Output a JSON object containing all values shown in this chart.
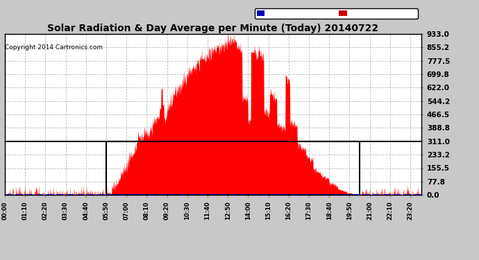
{
  "title": "Solar Radiation & Day Average per Minute (Today) 20140722",
  "copyright": "Copyright 2014 Cartronics.com",
  "ylabel_right": [
    "933.0",
    "855.2",
    "777.5",
    "699.8",
    "622.0",
    "544.2",
    "466.5",
    "388.8",
    "311.0",
    "233.2",
    "155.5",
    "77.8",
    "0.0"
  ],
  "yticks": [
    933.0,
    855.2,
    777.5,
    699.8,
    622.0,
    544.2,
    466.5,
    388.8,
    311.0,
    233.2,
    155.5,
    77.8,
    0.0
  ],
  "ymax": 933.0,
  "ymin": 0.0,
  "median_value": 311.0,
  "bg_color": "#c8c8c8",
  "plot_bg_color": "#ffffff",
  "fill_color": "#ff0000",
  "blue_line_color": "#0000ff",
  "median_color": "#000000",
  "legend_median_bg": "#0000bb",
  "legend_radiation_bg": "#cc0000",
  "title_color": "#000000",
  "copyright_color": "#000000",
  "grid_color": "#aaaaaa",
  "sunrise_minute": 350,
  "sunset_minute": 1225,
  "total_minutes": 1440,
  "xtick_step": 70
}
